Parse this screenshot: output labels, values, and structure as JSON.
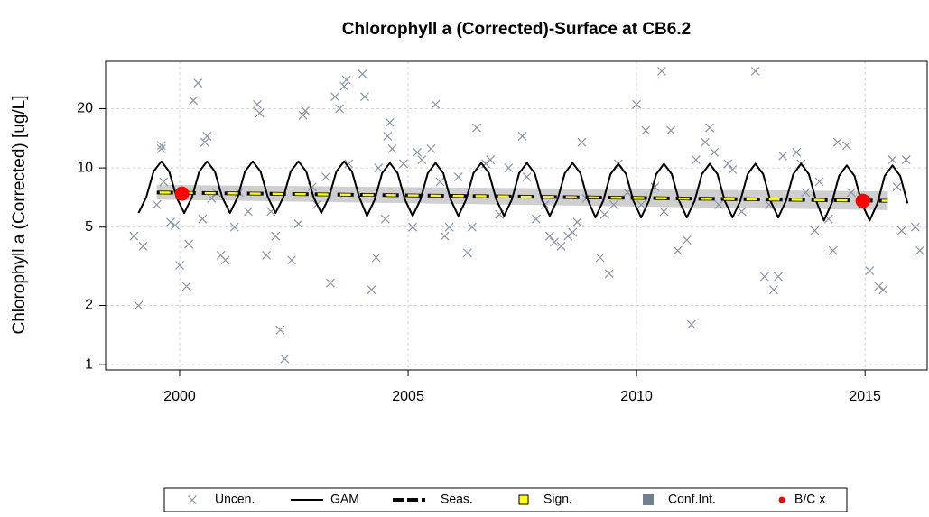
{
  "chart_data": {
    "type": "scatter",
    "title": "Chlorophyll a (Corrected)-Surface at CB6.2",
    "y_label": "Chlorophyll a (Corrected) [ug/L]",
    "xlim": [
      1998.38,
      2016.36
    ],
    "xticks": [
      2000,
      2005,
      2010,
      2015
    ],
    "ylim": [
      0.94,
      34.8
    ],
    "yticks": [
      1,
      2,
      5,
      10,
      20
    ],
    "y_scale": "log",
    "grid": true,
    "legend": "bottom",
    "series": [
      {
        "name": "Uncen.",
        "kind": "points",
        "color": "#8a94a6",
        "x": [
          1999.0,
          1999.1,
          1999.2,
          1999.5,
          1999.6,
          1999.6,
          1999.65,
          1999.8,
          1999.9,
          2000.0,
          2000.15,
          2000.2,
          2000.3,
          2000.4,
          2000.5,
          2000.55,
          2000.6,
          2000.7,
          2000.8,
          2000.9,
          2001.0,
          2001.2,
          2001.3,
          2001.5,
          2001.7,
          2001.75,
          2001.9,
          2002.0,
          2002.1,
          2002.2,
          2002.3,
          2002.45,
          2002.6,
          2002.7,
          2002.75,
          2002.9,
          2003.0,
          2003.2,
          2003.3,
          2003.4,
          2003.5,
          2003.6,
          2003.65,
          2003.7,
          2004.0,
          2004.05,
          2004.2,
          2004.3,
          2004.35,
          2004.5,
          2004.55,
          2004.6,
          2004.65,
          2004.9,
          2005.1,
          2005.2,
          2005.3,
          2005.5,
          2005.6,
          2005.7,
          2005.8,
          2005.9,
          2006.1,
          2006.3,
          2006.4,
          2006.5,
          2006.7,
          2006.8,
          2007.0,
          2007.2,
          2007.5,
          2007.6,
          2007.8,
          2008.0,
          2008.1,
          2008.2,
          2008.35,
          2008.5,
          2008.6,
          2008.7,
          2008.8,
          2008.9,
          2009.2,
          2009.3,
          2009.4,
          2009.5,
          2009.6,
          2009.8,
          2010.0,
          2010.1,
          2010.2,
          2010.4,
          2010.55,
          2010.6,
          2010.75,
          2010.9,
          2011.1,
          2011.2,
          2011.3,
          2011.5,
          2011.6,
          2011.7,
          2011.8,
          2012.0,
          2012.1,
          2012.3,
          2012.6,
          2012.8,
          2012.9,
          2013.0,
          2013.1,
          2013.2,
          2013.5,
          2013.6,
          2013.7,
          2013.9,
          2014.0,
          2014.2,
          2014.3,
          2014.4,
          2014.6,
          2014.7,
          2015.1,
          2015.3,
          2015.4,
          2015.6,
          2015.7,
          2015.8,
          2015.9,
          2016.1,
          2016.2
        ],
        "values": [
          4.5,
          2.0,
          4.0,
          6.5,
          12.5,
          13.0,
          8.5,
          5.3,
          5.1,
          3.2,
          2.5,
          4.1,
          22,
          27,
          5.5,
          13.5,
          14.5,
          7,
          7.5,
          3.6,
          3.4,
          5,
          7.5,
          6,
          21,
          19,
          3.6,
          6,
          4.5,
          1.5,
          1.07,
          3.4,
          5.2,
          18.5,
          19.5,
          8,
          6.5,
          9,
          2.6,
          23,
          20,
          26,
          28,
          10.5,
          30,
          23,
          2.4,
          3.5,
          10,
          5.5,
          14.5,
          17,
          12.5,
          10.5,
          5,
          12,
          11,
          12.5,
          21,
          8.5,
          4.5,
          5,
          9,
          3.7,
          5,
          16,
          10.5,
          11,
          5.8,
          10,
          14.5,
          9,
          5.5,
          6.5,
          4.5,
          4.2,
          4.0,
          4.5,
          4.7,
          5.3,
          13.5,
          7,
          3.5,
          5.8,
          2.9,
          6.5,
          10.5,
          7.5,
          21,
          6.5,
          15.5,
          8,
          31,
          6,
          15.5,
          3.8,
          4.3,
          1.6,
          11,
          13.5,
          16,
          12,
          6.5,
          10.5,
          9.8,
          6,
          31,
          2.8,
          6.5,
          2.4,
          2.8,
          11.5,
          12,
          10.5,
          7.5,
          4.8,
          8.5,
          5.5,
          3.8,
          13.5,
          13,
          7.5,
          3.0,
          2.5,
          2.4,
          11,
          8,
          4.8,
          11,
          5,
          3.8
        ]
      },
      {
        "name": "GAM",
        "kind": "line",
        "color": "#000000",
        "x": [
          1999.1,
          1999.27,
          1999.43,
          1999.6,
          1999.77,
          1999.93,
          2000.1,
          2000.27,
          2000.43,
          2000.6,
          2000.77,
          2000.93,
          2001.1,
          2001.27,
          2001.43,
          2001.6,
          2001.77,
          2001.93,
          2002.1,
          2002.27,
          2002.43,
          2002.6,
          2002.77,
          2002.93,
          2003.1,
          2003.27,
          2003.43,
          2003.6,
          2003.77,
          2003.93,
          2004.1,
          2004.27,
          2004.43,
          2004.6,
          2004.77,
          2004.93,
          2005.1,
          2005.27,
          2005.43,
          2005.6,
          2005.77,
          2005.93,
          2006.1,
          2006.27,
          2006.43,
          2006.6,
          2006.77,
          2006.93,
          2007.1,
          2007.27,
          2007.43,
          2007.6,
          2007.77,
          2007.93,
          2008.1,
          2008.27,
          2008.43,
          2008.6,
          2008.77,
          2008.93,
          2009.1,
          2009.27,
          2009.43,
          2009.6,
          2009.77,
          2009.93,
          2010.1,
          2010.27,
          2010.43,
          2010.6,
          2010.77,
          2010.93,
          2011.1,
          2011.27,
          2011.43,
          2011.6,
          2011.77,
          2011.93,
          2012.1,
          2012.27,
          2012.43,
          2012.6,
          2012.77,
          2012.93,
          2013.1,
          2013.27,
          2013.43,
          2013.6,
          2013.77,
          2013.93,
          2014.1,
          2014.27,
          2014.43,
          2014.6,
          2014.77,
          2014.93,
          2015.1,
          2015.27,
          2015.43,
          2015.6,
          2015.77,
          2015.93
        ],
        "values": [
          5.9,
          7.1,
          9.6,
          10.8,
          9.6,
          7.1,
          5.9,
          7.1,
          9.6,
          10.8,
          9.6,
          7.1,
          5.9,
          7.1,
          9.6,
          10.8,
          9.6,
          7.1,
          5.9,
          7.1,
          9.6,
          10.8,
          9.6,
          7.1,
          5.9,
          7.1,
          9.6,
          10.8,
          9.6,
          7.1,
          5.7,
          6.9,
          9.4,
          10.6,
          9.4,
          6.9,
          5.7,
          6.9,
          9.4,
          10.6,
          9.4,
          6.9,
          5.7,
          6.9,
          9.4,
          10.6,
          9.4,
          6.9,
          5.7,
          6.9,
          9.4,
          10.6,
          9.4,
          6.9,
          5.7,
          6.9,
          9.4,
          10.6,
          9.4,
          6.9,
          5.6,
          6.8,
          9.3,
          10.5,
          9.3,
          6.8,
          5.6,
          6.8,
          9.3,
          10.5,
          9.3,
          6.8,
          5.6,
          6.8,
          9.3,
          10.5,
          9.3,
          6.8,
          5.6,
          6.8,
          9.3,
          10.5,
          9.3,
          6.8,
          5.6,
          6.8,
          9.3,
          10.5,
          9.3,
          6.8,
          5.4,
          6.6,
          9.1,
          10.3,
          9.1,
          6.6,
          5.4,
          6.6,
          9.1,
          10.3,
          9.1,
          6.6
        ]
      },
      {
        "name": "Seas.",
        "kind": "dash",
        "color": "#000000",
        "x": [
          1999.5,
          2015.5
        ],
        "values": [
          7.5,
          6.8
        ]
      },
      {
        "name": "Sign.",
        "kind": "dash-overlay",
        "color": "#ffff00",
        "x": [
          1999.5,
          2015.5
        ],
        "values": [
          7.5,
          6.8
        ]
      },
      {
        "name": "Conf.Int.",
        "kind": "band",
        "color": "#708090",
        "x": [
          1999.5,
          2015.5
        ],
        "values": [
          8.2,
          7.6
        ],
        "lower": [
          6.9,
          6.1
        ]
      },
      {
        "name": "B/C x",
        "kind": "dot",
        "color": "#ff0000",
        "x": [
          2000.05,
          2014.95
        ],
        "values": [
          7.4,
          6.8
        ]
      }
    ]
  }
}
